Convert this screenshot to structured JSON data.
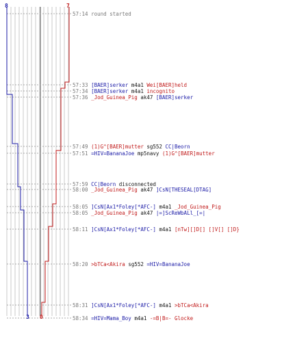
{
  "colors": {
    "blue_team": "#1a1aa6",
    "red_team": "#c01818",
    "guide": "#a9a9a9",
    "grid": "#c8c8c8"
  },
  "counts": {
    "blue_start": "8",
    "red_start": "7",
    "blue_end": "3",
    "red_end": "0"
  },
  "events": [
    {
      "time": "57:14",
      "parts": [
        {
          "text": "round started",
          "color": "gray"
        }
      ]
    },
    {
      "time": "57:33",
      "parts": [
        {
          "text": "[BAER]serker",
          "color": "blue"
        },
        {
          "text": "m4a1",
          "color": "black"
        },
        {
          "text": "Wei[BAER]held",
          "color": "red"
        }
      ]
    },
    {
      "time": "57:34",
      "parts": [
        {
          "text": "[BAER]serker",
          "color": "blue"
        },
        {
          "text": "m4a1",
          "color": "black"
        },
        {
          "text": "incognito",
          "color": "red"
        }
      ]
    },
    {
      "time": "57:36",
      "parts": [
        {
          "text": "_Jod_Guinea_Pig",
          "color": "red"
        },
        {
          "text": "ak47",
          "color": "black"
        },
        {
          "text": "[BAER]serker",
          "color": "blue"
        }
      ]
    },
    {
      "time": "57:49",
      "parts": [
        {
          "text": "(1)G^[BAER]mutter",
          "color": "red"
        },
        {
          "text": "sg552",
          "color": "black"
        },
        {
          "text": "CC|Beorn",
          "color": "blue"
        }
      ]
    },
    {
      "time": "57:51",
      "parts": [
        {
          "text": "=HIV=BananaJoe",
          "color": "blue"
        },
        {
          "text": "mp5navy",
          "color": "black"
        },
        {
          "text": "(1)G^[BAER]mutter",
          "color": "red"
        }
      ]
    },
    {
      "time": "57:59",
      "parts": [
        {
          "text": "CC|Beorn",
          "color": "blue"
        },
        {
          "text": "disconnected",
          "color": "black"
        }
      ]
    },
    {
      "time": "58:00",
      "parts": [
        {
          "text": "_Jod_Guinea_Pig",
          "color": "red"
        },
        {
          "text": "ak47",
          "color": "black"
        },
        {
          "text": "]CsN[THESEAL[DTAG]",
          "color": "blue"
        }
      ]
    },
    {
      "time": "58:05",
      "parts": [
        {
          "text": "]CsN[Ax1*Foley[*AFC-]",
          "color": "blue"
        },
        {
          "text": "m4a1",
          "color": "black"
        },
        {
          "text": "_Jod_Guinea_Pig",
          "color": "red"
        }
      ]
    },
    {
      "time": "58:05",
      "parts": [
        {
          "text": "_Jod_Guinea_Pig",
          "color": "red"
        },
        {
          "text": "ak47",
          "color": "black"
        },
        {
          "text": "|=]ScReWbALl_[=|",
          "color": "blue"
        }
      ]
    },
    {
      "time": "58:11",
      "parts": [
        {
          "text": "]CsN[Ax1*Foley[*AFC-]",
          "color": "blue"
        },
        {
          "text": "m4a1",
          "color": "black"
        },
        {
          "text": "[nTw][]D[] []V[] []D}",
          "color": "red"
        }
      ]
    },
    {
      "time": "58:20",
      "parts": [
        {
          "text": ">bTCa<Akira",
          "color": "red"
        },
        {
          "text": "sg552",
          "color": "black"
        },
        {
          "text": "=HIV=BananaJoe",
          "color": "blue"
        }
      ]
    },
    {
      "time": "58:31",
      "parts": [
        {
          "text": "]CsN[Ax1*Foley[*AFC-]",
          "color": "blue"
        },
        {
          "text": "m4a1",
          "color": "black"
        },
        {
          "text": ">bTCa<Akira",
          "color": "red"
        }
      ]
    },
    {
      "time": "58:34",
      "parts": [
        {
          "text": "=HIV=Mama_Boy",
          "color": "blue"
        },
        {
          "text": "m4a1",
          "color": "black"
        },
        {
          "text": "-=B|B=- Glocke",
          "color": "red"
        }
      ]
    }
  ]
}
